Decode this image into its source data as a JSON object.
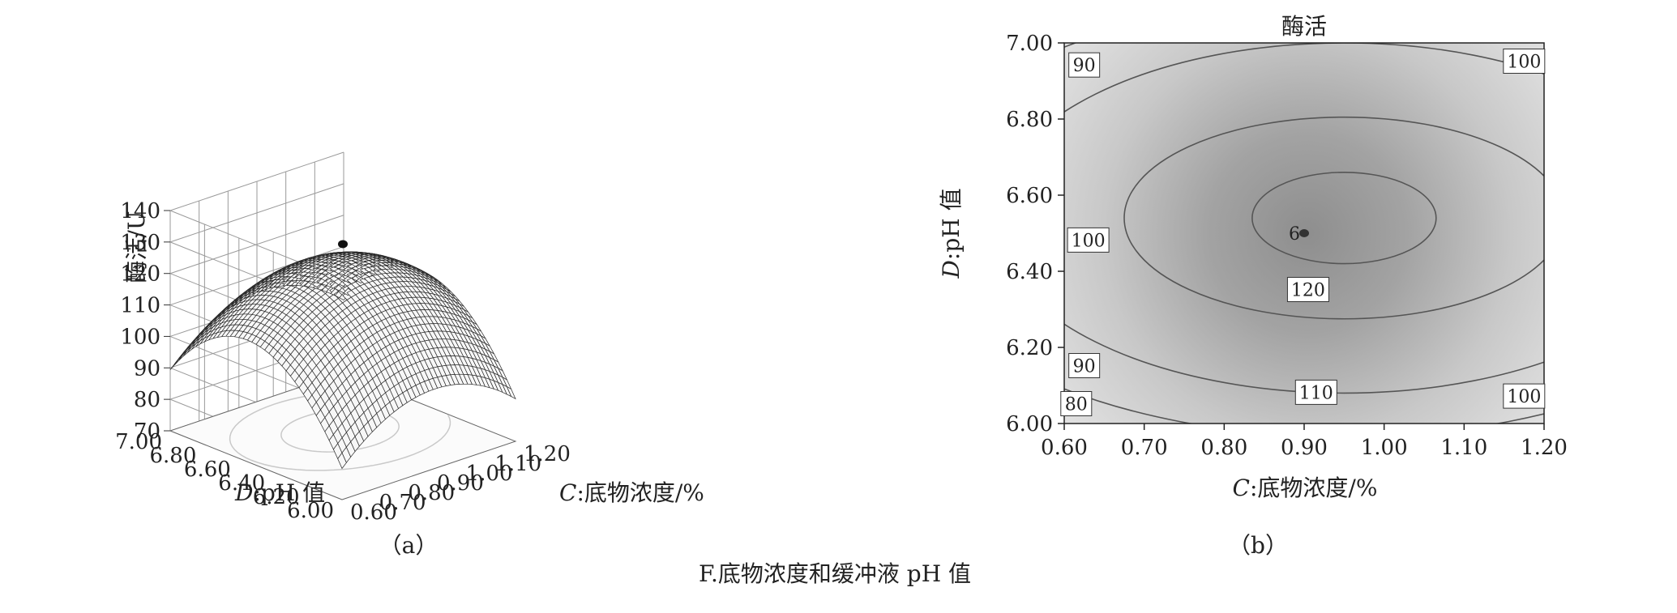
{
  "figure_caption": "F.底物浓度和缓冲液 pH 值",
  "chart_data": [
    {
      "type": "surface",
      "panel_label": "（a）",
      "z_label": "酶活/U",
      "x_label": {
        "var": "C",
        "text": ":底物浓度/%"
      },
      "y_label": {
        "var": "D",
        "text": ":pH 值"
      },
      "x_ticks": [
        "0.60",
        "0.70",
        "0.80",
        "0.90",
        "1.00",
        "1.10",
        "1.20"
      ],
      "y_ticks": [
        "6.00",
        "6.20",
        "6.40",
        "6.60",
        "6.80",
        "7.00"
      ],
      "z_ticks": [
        "70",
        "80",
        "90",
        "100",
        "110",
        "120",
        "130",
        "140"
      ],
      "xlim": [
        0.6,
        1.2
      ],
      "ylim": [
        6.0,
        7.0
      ],
      "zlim": [
        70,
        140
      ],
      "surface": {
        "x0": 0.92,
        "y0": 6.55,
        "z0": 124,
        "kx": 150,
        "ky": 95,
        "kxy": 0
      },
      "design_point": {
        "x": 0.9,
        "y": 6.5,
        "z": 131
      }
    },
    {
      "type": "contour",
      "title": "酶活",
      "panel_label": "（b）",
      "x_label": {
        "var": "C",
        "text": ":底物浓度/%"
      },
      "y_label": {
        "var": "D",
        "text": ":pH 值"
      },
      "x_ticks": [
        "0.60",
        "0.70",
        "0.80",
        "0.90",
        "1.00",
        "1.10",
        "1.20"
      ],
      "y_ticks": [
        "6.00",
        "6.20",
        "6.40",
        "6.60",
        "6.80",
        "7.00"
      ],
      "xlim": [
        0.6,
        1.2
      ],
      "ylim": [
        6.0,
        7.0
      ],
      "contour_levels": [
        80,
        90,
        100,
        110,
        120
      ],
      "contour_labels": [
        {
          "text": "90",
          "x": 0.625,
          "y": 6.94
        },
        {
          "text": "100",
          "x": 1.175,
          "y": 6.95
        },
        {
          "text": "100",
          "x": 0.63,
          "y": 6.48
        },
        {
          "text": "120",
          "x": 0.905,
          "y": 6.35
        },
        {
          "text": "90",
          "x": 0.625,
          "y": 6.15
        },
        {
          "text": "110",
          "x": 0.915,
          "y": 6.08
        },
        {
          "text": "80",
          "x": 0.615,
          "y": 6.05
        },
        {
          "text": "100",
          "x": 1.175,
          "y": 6.07
        }
      ],
      "design_point": {
        "x": 0.9,
        "y": 6.5,
        "label": "6"
      }
    }
  ]
}
